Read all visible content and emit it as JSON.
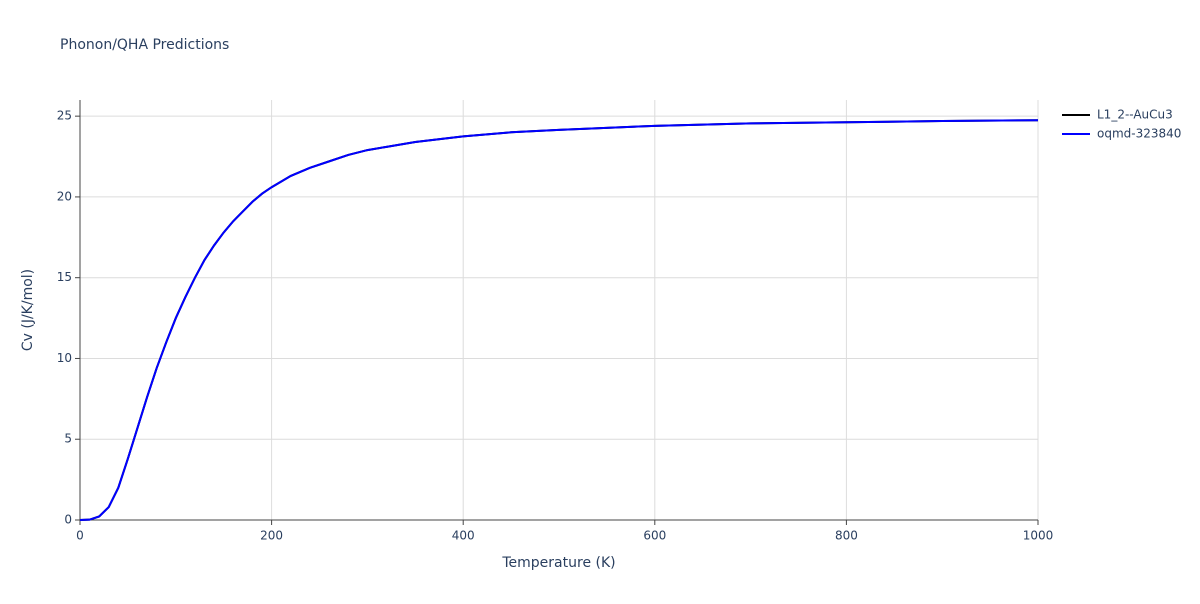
{
  "chart_data": {
    "type": "line",
    "title": "Phonon/QHA Predictions",
    "x_label": "Temperature (K)",
    "y_label": "Cv (J/K/mol)",
    "x": [
      0,
      10,
      20,
      30,
      40,
      50,
      60,
      70,
      80,
      90,
      100,
      110,
      120,
      130,
      140,
      150,
      160,
      170,
      180,
      190,
      200,
      220,
      240,
      260,
      280,
      300,
      320,
      350,
      400,
      450,
      500,
      600,
      700,
      800,
      900,
      1000
    ],
    "series": [
      {
        "name": "L1_2--AuCu3",
        "color": "#000000",
        "values": [
          0,
          0.02,
          0.22,
          0.8,
          2.0,
          3.8,
          5.7,
          7.6,
          9.4,
          11.0,
          12.5,
          13.8,
          15.0,
          16.1,
          17.0,
          17.8,
          18.5,
          19.1,
          19.7,
          20.2,
          20.6,
          21.3,
          21.8,
          22.2,
          22.6,
          22.9,
          23.1,
          23.4,
          23.75,
          24.0,
          24.15,
          24.4,
          24.55,
          24.62,
          24.7,
          24.75
        ]
      },
      {
        "name": "oqmd-323840",
        "color": "#0000ff",
        "values": [
          0,
          0.02,
          0.22,
          0.8,
          2.0,
          3.8,
          5.7,
          7.6,
          9.4,
          11.0,
          12.5,
          13.8,
          15.0,
          16.1,
          17.0,
          17.8,
          18.5,
          19.1,
          19.7,
          20.2,
          20.6,
          21.3,
          21.8,
          22.2,
          22.6,
          22.9,
          23.1,
          23.4,
          23.75,
          24.0,
          24.15,
          24.4,
          24.55,
          24.62,
          24.7,
          24.75
        ]
      }
    ],
    "xlim": [
      0,
      1000
    ],
    "xticks": [
      0,
      200,
      400,
      600,
      800,
      1000
    ],
    "ylim": [
      0,
      26
    ],
    "yticks": [
      0,
      5,
      10,
      15,
      20,
      25
    ],
    "grid": true,
    "legend": "right"
  }
}
